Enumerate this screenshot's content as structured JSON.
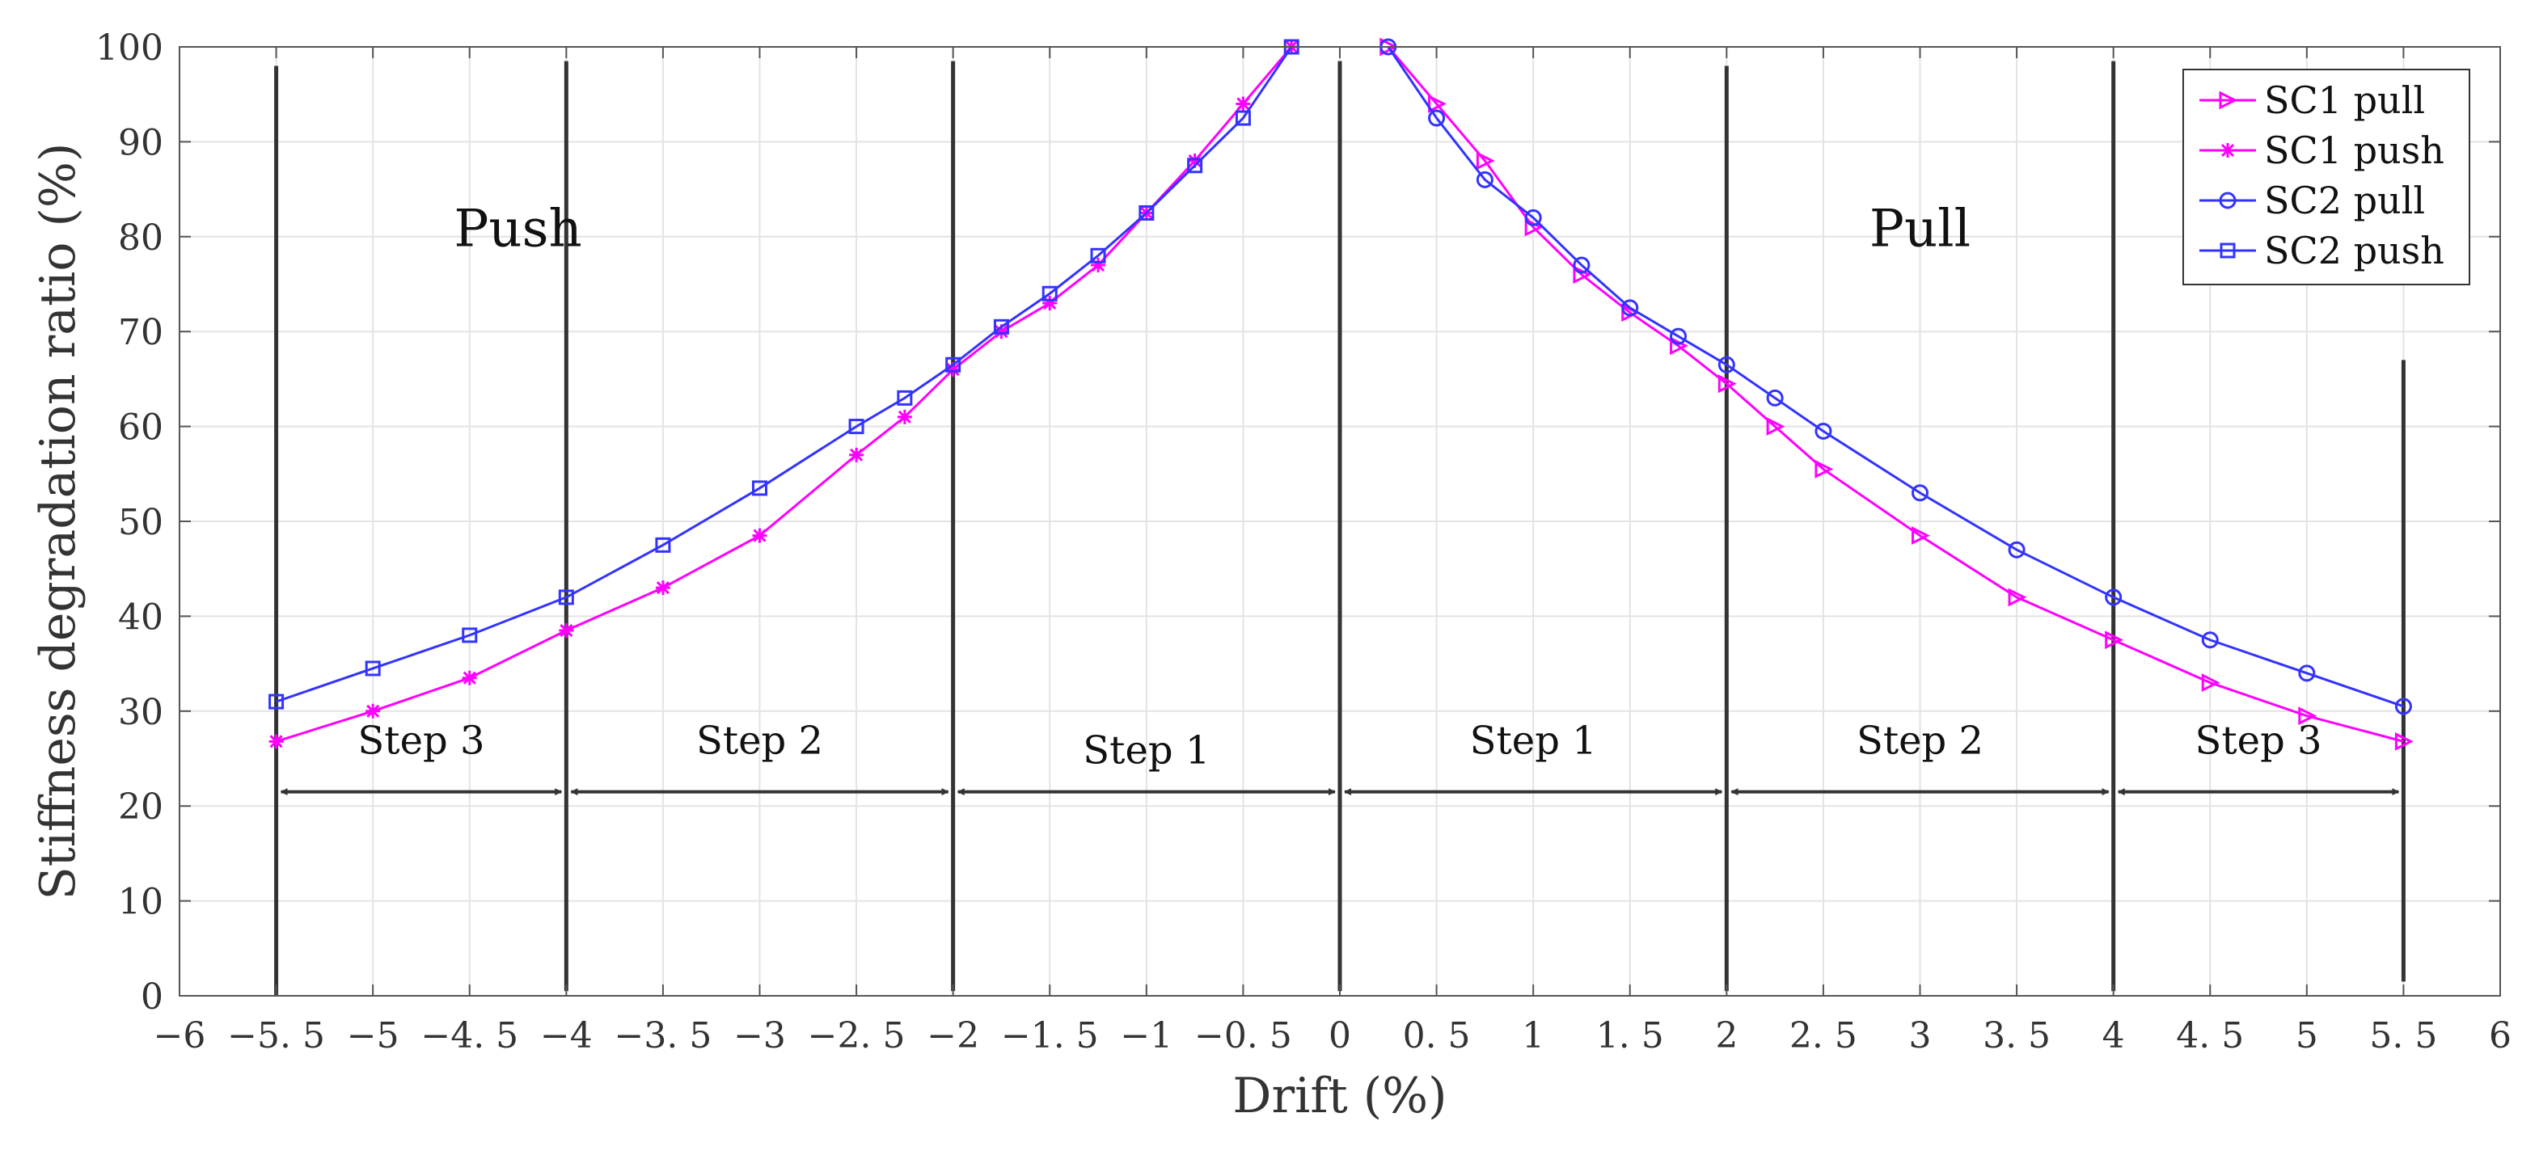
{
  "chart_data": {
    "type": "line",
    "title": "",
    "xlabel": "Drift (%)",
    "ylabel": "Stiffness degradation ratio (%)",
    "xlim": [
      -6,
      6
    ],
    "ylim": [
      0,
      100
    ],
    "grid": true,
    "legend_position": "top-right",
    "xticks": [
      -6,
      -5.5,
      -5,
      -4.5,
      -4,
      -3.5,
      -3,
      -2.5,
      -2,
      -1.5,
      -1,
      -0.5,
      0,
      0.5,
      1,
      1.5,
      2,
      2.5,
      3,
      3.5,
      4,
      4.5,
      5,
      5.5,
      6
    ],
    "xtick_labels": [
      "−6",
      "−5. 5",
      "−5",
      "−4. 5",
      "−4",
      "−3. 5",
      "−3",
      "−2. 5",
      "−2",
      "−1. 5",
      "−1",
      "−0. 5",
      "0",
      "0. 5",
      "1",
      "1. 5",
      "2",
      "2. 5",
      "3",
      "3. 5",
      "4",
      "4. 5",
      "5",
      "5. 5",
      "6"
    ],
    "yticks": [
      0,
      10,
      20,
      30,
      40,
      50,
      60,
      70,
      80,
      90,
      100
    ],
    "ytick_labels": [
      "0",
      "10",
      "20",
      "30",
      "40",
      "50",
      "60",
      "70",
      "80",
      "90",
      "100"
    ],
    "series": [
      {
        "name": "SC1 pull",
        "color": "#ff00ff",
        "marker": "triangle-right",
        "x": [
          0.25,
          0.5,
          0.75,
          1.0,
          1.25,
          1.5,
          1.75,
          2.0,
          2.25,
          2.5,
          3.0,
          3.5,
          4.0,
          4.5,
          5.0,
          5.5
        ],
        "y": [
          100,
          94,
          88,
          81,
          76,
          72,
          68.5,
          64.5,
          60,
          55.5,
          48.5,
          42,
          37.5,
          33,
          29.5,
          26.8
        ]
      },
      {
        "name": "SC1 push",
        "color": "#ff00ff",
        "marker": "asterisk",
        "x": [
          -0.25,
          -0.5,
          -0.75,
          -1.0,
          -1.25,
          -1.5,
          -1.75,
          -2.0,
          -2.25,
          -2.5,
          -3.0,
          -3.5,
          -4.0,
          -4.5,
          -5.0,
          -5.5
        ],
        "y": [
          100,
          94,
          88,
          82.5,
          77,
          73,
          70,
          66,
          61,
          57,
          48.5,
          43,
          38.5,
          33.5,
          30,
          26.8
        ]
      },
      {
        "name": "SC2 pull",
        "color": "#3333ff",
        "marker": "circle",
        "x": [
          0.25,
          0.5,
          0.75,
          1.0,
          1.25,
          1.5,
          1.75,
          2.0,
          2.25,
          2.5,
          3.0,
          3.5,
          4.0,
          4.5,
          5.0,
          5.5
        ],
        "y": [
          100,
          92.5,
          86,
          82,
          77,
          72.5,
          69.5,
          66.5,
          63,
          59.5,
          53,
          47,
          42,
          37.5,
          34,
          30.5
        ]
      },
      {
        "name": "SC2 push",
        "color": "#3333ff",
        "marker": "square",
        "x": [
          -0.25,
          -0.5,
          -0.75,
          -1.0,
          -1.25,
          -1.5,
          -1.75,
          -2.0,
          -2.25,
          -2.5,
          -3.0,
          -3.5,
          -4.0,
          -4.5,
          -5.0,
          -5.5
        ],
        "y": [
          100,
          92.5,
          87.5,
          82.5,
          78,
          74,
          70.5,
          66.5,
          63,
          60,
          53.5,
          47.5,
          42,
          38,
          34.5,
          31
        ]
      }
    ],
    "annotations": {
      "regions": [
        {
          "text": "Push",
          "x": -4.25,
          "y": 79
        },
        {
          "text": "Pull",
          "x": 3.0,
          "y": 79
        }
      ],
      "vertical_lines": [
        {
          "x": -5.5,
          "y_from": 0,
          "y_to": 98
        },
        {
          "x": -4.0,
          "y_from": 0.5,
          "y_to": 98.5
        },
        {
          "x": -2.0,
          "y_from": 0.5,
          "y_to": 98.5
        },
        {
          "x": 0.0,
          "y_from": 0.5,
          "y_to": 98.5
        },
        {
          "x": 2.0,
          "y_from": 0.5,
          "y_to": 98
        },
        {
          "x": 4.0,
          "y_from": 0.5,
          "y_to": 98.5
        },
        {
          "x": 5.5,
          "y_from": 1.5,
          "y_to": 67
        }
      ],
      "steps": [
        {
          "label": "Step 3",
          "x_from": -5.5,
          "x_to": -4.0,
          "arrow_y": 21.5,
          "label_y": 25.5
        },
        {
          "label": "Step 2",
          "x_from": -4.0,
          "x_to": -2.0,
          "arrow_y": 21.5,
          "label_y": 25.5
        },
        {
          "label": "Step 1",
          "x_from": -2.0,
          "x_to": 0.0,
          "arrow_y": 21.5,
          "label_y": 24.5
        },
        {
          "label": "Step 1",
          "x_from": 0.0,
          "x_to": 2.0,
          "arrow_y": 21.5,
          "label_y": 25.5
        },
        {
          "label": "Step 2",
          "x_from": 2.0,
          "x_to": 4.0,
          "arrow_y": 21.5,
          "label_y": 25.5
        },
        {
          "label": "Step 3",
          "x_from": 4.0,
          "x_to": 5.5,
          "arrow_y": 21.5,
          "label_y": 25.5
        }
      ]
    }
  }
}
